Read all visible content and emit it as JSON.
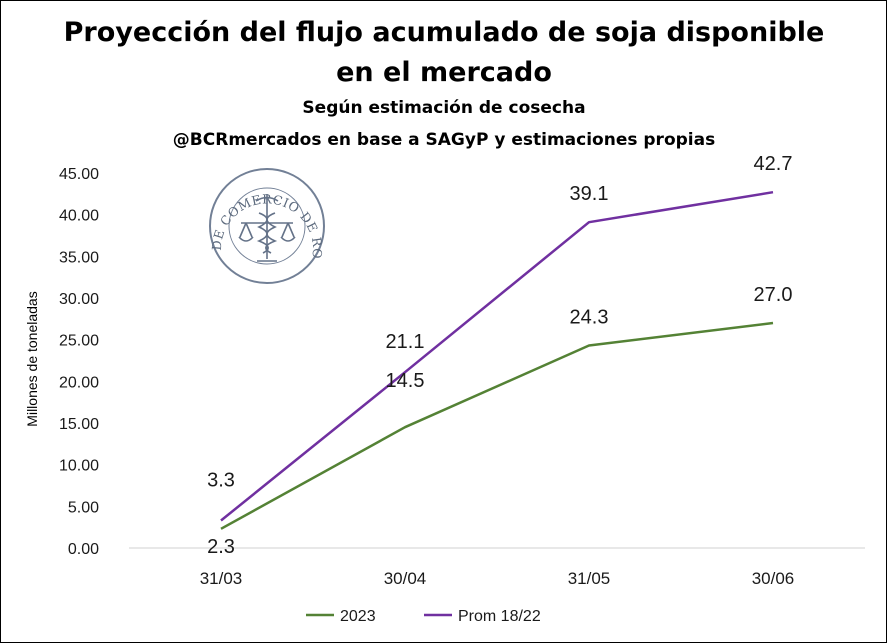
{
  "chart_data": {
    "type": "line",
    "title_line1": "Proyección del flujo acumulado de soja disponible",
    "title_line2": "en el mercado",
    "subtitle_line1": "Según estimación de cosecha",
    "subtitle_line2": "@BCRmercados en base a SAGyP y estimaciones propias",
    "ylabel": "Millones de toneladas",
    "xlabel": "",
    "categories": [
      "31/03",
      "30/04",
      "31/05",
      "30/06"
    ],
    "yticks": [
      "0.00",
      "5.00",
      "10.00",
      "15.00",
      "20.00",
      "25.00",
      "30.00",
      "35.00",
      "40.00",
      "45.00"
    ],
    "ylim": [
      0,
      45
    ],
    "series": [
      {
        "name": "2023",
        "values": [
          2.3,
          14.5,
          24.3,
          27.0
        ],
        "labels": [
          "2.3",
          "14.5",
          "24.3",
          "27.0"
        ],
        "color": "#548235"
      },
      {
        "name": "Prom 18/22",
        "values": [
          3.3,
          21.1,
          39.1,
          42.7
        ],
        "labels": [
          "3.3",
          "21.1",
          "39.1",
          "42.7"
        ],
        "color": "#7030a0"
      }
    ],
    "legend_position": "bottom",
    "grid": false,
    "watermark": {
      "text": "BOLSA DE COMERCIO DE ROSARIO",
      "icon": "caduceus-scales-seal"
    }
  }
}
